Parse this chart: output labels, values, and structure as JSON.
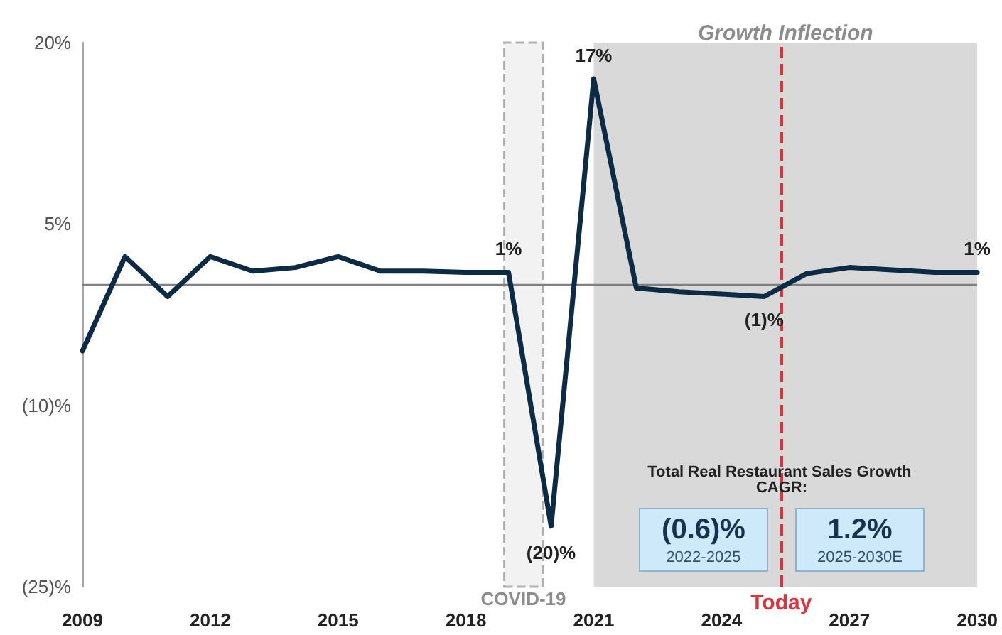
{
  "chart_data": {
    "type": "line",
    "x": [
      2009,
      2010,
      2011,
      2012,
      2013,
      2014,
      2015,
      2016,
      2017,
      2018,
      2019,
      2020,
      2021,
      2022,
      2023,
      2024,
      2025,
      2026,
      2027,
      2028,
      2029,
      2030
    ],
    "series": [
      {
        "color": "#0d2b45",
        "values": [
          -5.5,
          2.3,
          -1.0,
          2.3,
          1.1,
          1.4,
          2.3,
          1.1,
          1.1,
          1.0,
          1,
          -20,
          17,
          -0.3,
          -0.6,
          -0.8,
          -1,
          0.9,
          1.4,
          1.2,
          1.0,
          1
        ],
        "value_labels": [
          null,
          null,
          null,
          null,
          null,
          null,
          null,
          null,
          null,
          null,
          "1%",
          "(20)%",
          "17%",
          null,
          null,
          null,
          "(1)%",
          null,
          null,
          null,
          null,
          "1%"
        ]
      }
    ],
    "xlim": [
      2009,
      2030
    ],
    "xticks": [
      2009,
      2012,
      2015,
      2018,
      2021,
      2024,
      2027,
      2030
    ],
    "ylim": [
      -25,
      20
    ],
    "yticks": [
      {
        "value": -25,
        "label": "(25)%"
      },
      {
        "value": -10,
        "label": "(10)%"
      },
      {
        "value": 5,
        "label": "5%"
      },
      {
        "value": 20,
        "label": "20%"
      }
    ],
    "ref_lines": [
      {
        "axis": "y",
        "value": 0,
        "label": null,
        "color": "#808080",
        "line_style": "solid"
      },
      {
        "axis": "x",
        "value": 2025.4,
        "label": "Today",
        "color": "#e0313b",
        "line_style": "dashed"
      }
    ],
    "bands": [
      {
        "axis": "x",
        "from": 2018.9,
        "to": 2019.8,
        "label": "COVID-19",
        "color": "#f2f2f2"
      },
      {
        "axis": "x",
        "from": 2021,
        "to": 2030,
        "label": "Growth Inflection",
        "color": "#d9d9d9"
      }
    ],
    "annotations": [
      "Total Real Restaurant Sales Growth CAGR:",
      "(0.6)%",
      "2022-2025",
      "1.2%",
      "2025-2030E"
    ],
    "grid": false
  }
}
